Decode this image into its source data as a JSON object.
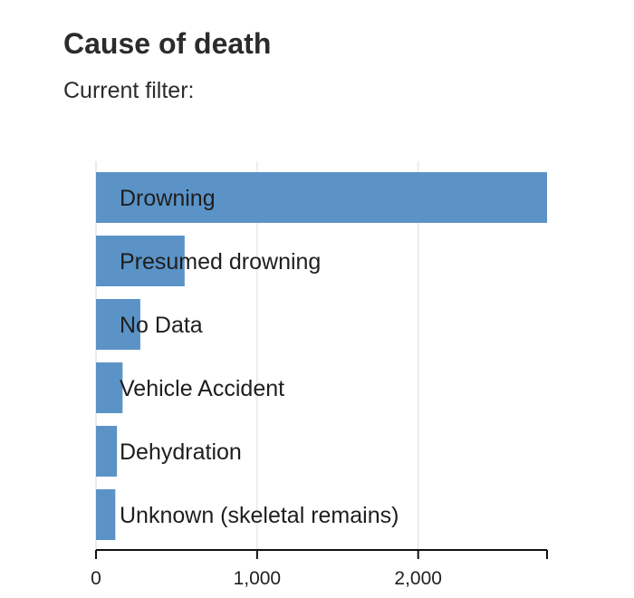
{
  "header": {
    "title": "Cause of death",
    "filter_label": "Current filter:",
    "filter_value": ""
  },
  "chart_data": {
    "type": "bar",
    "orientation": "horizontal",
    "categories": [
      "Drowning",
      "Presumed drowning",
      "No Data",
      "Vehicle Accident",
      "Dehydration",
      "Unknown (skeletal remains)"
    ],
    "values": [
      2800,
      550,
      275,
      165,
      130,
      120
    ],
    "xlim": [
      0,
      2800
    ],
    "xticks": [
      0,
      1000,
      2000
    ],
    "xtick_labels": [
      "0",
      "1,000",
      "2,000"
    ],
    "grid": true,
    "bar_color": "#5b93c7",
    "grid_color": "#e6e0ea",
    "axis_color": "#111111"
  }
}
